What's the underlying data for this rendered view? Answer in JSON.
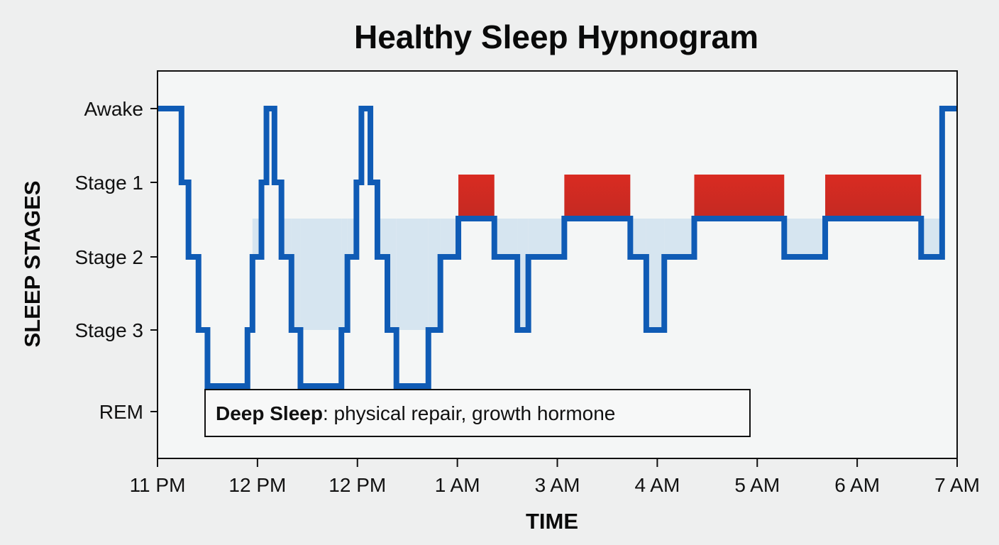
{
  "chart_data": {
    "type": "line",
    "title": "Healthy Sleep Hypnogram",
    "xlabel": "TIME",
    "ylabel": "SLEEP STAGES",
    "y_levels": [
      "Awake",
      "Stage 1",
      "Stage 2",
      "Stage 3",
      "REM"
    ],
    "x_tick_labels": [
      "11 PM",
      "12 PM",
      "12 PM",
      "1 AM",
      "3 AM",
      "4 AM",
      "5 AM",
      "6 AM",
      "7 AM"
    ],
    "xlim": [
      0,
      8
    ],
    "grid": false,
    "legend": "none",
    "series": [
      {
        "step_points": [
          [
            0.0,
            "Awake"
          ],
          [
            0.24,
            "Stage 1"
          ],
          [
            0.31,
            "Stage 2"
          ],
          [
            0.41,
            "Stage 3"
          ],
          [
            0.5,
            "REM"
          ],
          [
            0.9,
            "Stage 3"
          ],
          [
            0.95,
            "Stage 2"
          ],
          [
            1.04,
            "Stage 1"
          ],
          [
            1.09,
            "Awake"
          ],
          [
            1.17,
            "Stage 1"
          ],
          [
            1.24,
            "Stage 2"
          ],
          [
            1.34,
            "Stage 3"
          ],
          [
            1.43,
            "REM"
          ],
          [
            1.84,
            "Stage 3"
          ],
          [
            1.9,
            "Stage 2"
          ],
          [
            1.99,
            "Stage 1"
          ],
          [
            2.04,
            "Awake"
          ],
          [
            2.13,
            "Stage 1"
          ],
          [
            2.2,
            "Stage 2"
          ],
          [
            2.3,
            "Stage 3"
          ],
          [
            2.39,
            "REM"
          ],
          [
            2.71,
            "Stage 3"
          ],
          [
            2.83,
            "Stage 2"
          ],
          [
            3.01,
            "Stage 1.5"
          ],
          [
            3.37,
            "Stage 2"
          ],
          [
            3.6,
            "Stage 3"
          ],
          [
            3.71,
            "Stage 2"
          ],
          [
            4.07,
            "Stage 1.5"
          ],
          [
            4.73,
            "Stage 2"
          ],
          [
            4.89,
            "Stage 3"
          ],
          [
            5.07,
            "Stage 2"
          ],
          [
            5.37,
            "Stage 1.5"
          ],
          [
            6.27,
            "Stage 2"
          ],
          [
            6.68,
            "Stage 1.5"
          ],
          [
            7.64,
            "Stage 2"
          ],
          [
            7.85,
            "Awake"
          ],
          [
            8.0,
            "Awake"
          ]
        ]
      }
    ],
    "highlight_blocks": [
      {
        "x": [
          3.01,
          3.37
        ],
        "y": [
          "Stage 1",
          "Stage 1.5"
        ]
      },
      {
        "x": [
          4.07,
          4.73
        ],
        "y": [
          "Stage 1",
          "Stage 1.5"
        ]
      },
      {
        "x": [
          5.37,
          6.27
        ],
        "y": [
          "Stage 1",
          "Stage 1.5"
        ]
      },
      {
        "x": [
          6.68,
          7.64
        ],
        "y": [
          "Stage 1",
          "Stage 1.5"
        ]
      }
    ],
    "annotation": {
      "bold": "Deep Sleep",
      "text": ": physical repair, growth hormone"
    },
    "colors": {
      "line": "#0f5bb5",
      "fill": "#d3e3ef",
      "block_top": "#d92b22",
      "block_bottom": "#c42a22",
      "frame": "#111111",
      "plot_bg": "#f4f6f6"
    }
  }
}
